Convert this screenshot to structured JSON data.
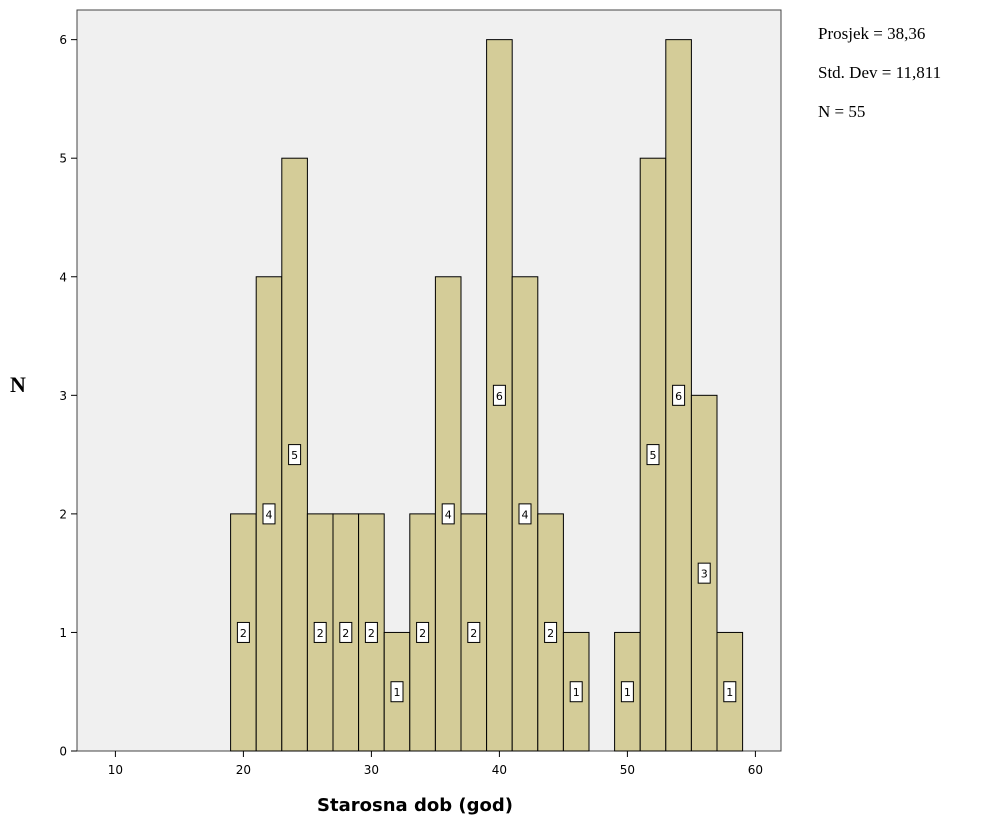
{
  "chart_data": {
    "type": "bar",
    "subtype": "histogram",
    "xlabel": "Starosna dob (god)",
    "ylabel": "N",
    "xlim": [
      7,
      62
    ],
    "ylim": [
      0,
      6.25
    ],
    "x_ticks": [
      10,
      20,
      30,
      40,
      50,
      60
    ],
    "y_ticks": [
      0,
      1,
      2,
      3,
      4,
      5,
      6
    ],
    "bin_width": 2,
    "bin_starts": [
      19,
      21,
      23,
      25,
      27,
      29,
      31,
      33,
      35,
      37,
      39,
      41,
      43,
      45,
      47,
      49,
      51,
      53,
      55,
      57
    ],
    "values": [
      2,
      4,
      5,
      2,
      2,
      2,
      1,
      2,
      4,
      2,
      6,
      4,
      2,
      1,
      0,
      1,
      5,
      6,
      3,
      1
    ],
    "data_labels": [
      "2",
      "4",
      "5",
      "2",
      "2",
      "2",
      "1",
      "2",
      "4",
      "2",
      "6",
      "4",
      "2",
      "1",
      "",
      "1",
      "5",
      "6",
      "3",
      "1"
    ],
    "stats": {
      "mean": "Prosjek = 38,36",
      "std": "Std. Dev = 11,811",
      "n": "N = 55"
    },
    "grid": false,
    "colors": {
      "bar": "#d4cc98",
      "plot_bg": "#f0f0f0",
      "edge": "#000000"
    }
  }
}
